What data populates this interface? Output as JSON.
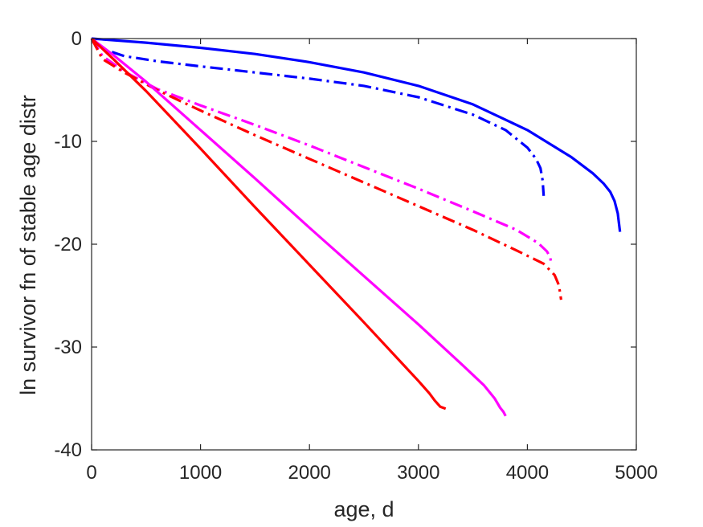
{
  "chart_data": {
    "type": "line",
    "title": "",
    "xlabel": "age, d",
    "ylabel": "ln survivor fn of stable age distr",
    "xlim": [
      0,
      5000
    ],
    "ylim": [
      -40,
      0
    ],
    "xticks": [
      0,
      1000,
      2000,
      3000,
      4000,
      5000
    ],
    "yticks": [
      0,
      -10,
      -20,
      -30,
      -40
    ],
    "xtick_labels": [
      "0",
      "1000",
      "2000",
      "3000",
      "4000",
      "5000"
    ],
    "ytick_labels": [
      "0",
      "-10",
      "-20",
      "-30",
      "-40"
    ],
    "grid": false,
    "legend": "none",
    "series": [
      {
        "color": "#0000ff",
        "style": "solid",
        "x": [
          0,
          500,
          1000,
          1500,
          2000,
          2500,
          3000,
          3500,
          4000,
          4400,
          4600,
          4700,
          4760,
          4800,
          4830,
          4850
        ],
        "y": [
          0,
          -0.4,
          -0.9,
          -1.5,
          -2.3,
          -3.3,
          -4.6,
          -6.4,
          -8.9,
          -11.5,
          -13.1,
          -14.1,
          -14.9,
          -15.8,
          -17.0,
          -18.8
        ]
      },
      {
        "color": "#0000ff",
        "style": "dashdot",
        "x": [
          0,
          100,
          300,
          600,
          1000,
          1500,
          2000,
          2500,
          3000,
          3500,
          3800,
          4000,
          4080,
          4120,
          4140,
          4150
        ],
        "y": [
          0,
          -1.0,
          -1.7,
          -2.2,
          -2.7,
          -3.3,
          -3.9,
          -4.6,
          -5.7,
          -7.4,
          -8.9,
          -10.6,
          -11.7,
          -12.6,
          -13.8,
          -15.3
        ]
      },
      {
        "color": "#ff00ff",
        "style": "dashdot",
        "x": [
          0,
          100,
          300,
          600,
          1000,
          1500,
          2000,
          2500,
          3000,
          3500,
          3900,
          4100,
          4180,
          4210,
          4220
        ],
        "y": [
          0,
          -1.7,
          -3.2,
          -4.9,
          -6.5,
          -8.4,
          -10.4,
          -12.5,
          -14.6,
          -16.8,
          -18.6,
          -19.9,
          -20.7,
          -21.3,
          -22.0
        ]
      },
      {
        "color": "#ff0000",
        "style": "dashdot",
        "x": [
          0,
          100,
          300,
          600,
          1000,
          1500,
          2000,
          2500,
          3000,
          3500,
          3900,
          4150,
          4250,
          4290,
          4310
        ],
        "y": [
          0,
          -2.0,
          -3.3,
          -5.0,
          -7.0,
          -9.4,
          -11.7,
          -14.0,
          -16.3,
          -18.6,
          -20.6,
          -21.9,
          -23.0,
          -24.0,
          -25.4
        ]
      },
      {
        "color": "#ff00ff",
        "style": "solid",
        "x": [
          0,
          200,
          500,
          1000,
          1500,
          2000,
          2500,
          3000,
          3400,
          3600,
          3700,
          3750,
          3780,
          3800
        ],
        "y": [
          0,
          -1.6,
          -4.2,
          -8.9,
          -13.6,
          -18.4,
          -23.1,
          -27.8,
          -31.7,
          -33.7,
          -35.0,
          -35.9,
          -36.3,
          -36.7
        ]
      },
      {
        "color": "#ff0000",
        "style": "solid",
        "x": [
          0,
          200,
          500,
          1000,
          1500,
          2000,
          2500,
          3000,
          3100,
          3150,
          3200,
          3250
        ],
        "y": [
          0,
          -2.0,
          -5.1,
          -10.7,
          -16.4,
          -22.0,
          -27.6,
          -33.3,
          -34.5,
          -35.2,
          -35.8,
          -36.0
        ]
      }
    ]
  }
}
